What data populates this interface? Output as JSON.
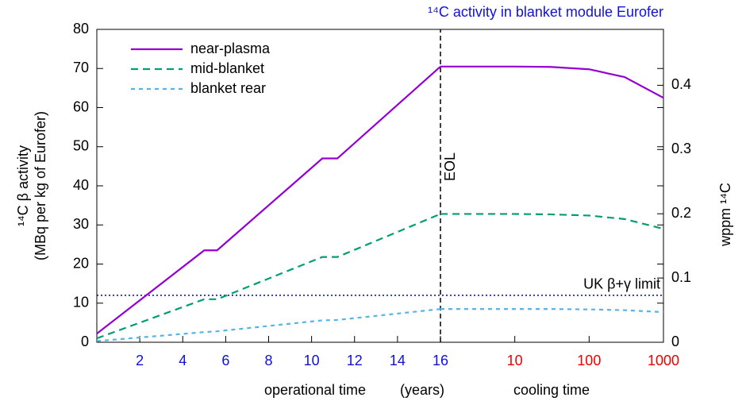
{
  "chart_data": {
    "type": "line",
    "title": "¹⁴C activity in blanket module Eurofer",
    "ylabel": [
      "¹⁴C β activity",
      "(MBq per kg of Eurofer)"
    ],
    "y2label": "wppm ¹⁴C",
    "xlabels": [
      "operational time",
      "(years)",
      "cooling time"
    ],
    "x": [
      0,
      5,
      5.6,
      10.5,
      11.2,
      16
    ],
    "xlim": [
      0,
      16
    ],
    "xticks": [
      2,
      4,
      6,
      8,
      10,
      12,
      14,
      16
    ],
    "xtick_color": "#1010e0",
    "cooling_x": [
      1,
      10,
      30,
      100,
      300,
      1000
    ],
    "cooling_xlim": [
      1,
      1000
    ],
    "cooling_log": true,
    "cooling_xticks": [
      10,
      100,
      1000
    ],
    "cooling_xtick_color": "#f00000",
    "ylim": [
      0,
      80
    ],
    "yticks": [
      0,
      10,
      20,
      30,
      40,
      50,
      60,
      70,
      80
    ],
    "y2lim": [
      0,
      0.487
    ],
    "y2ticks": [
      0,
      0.1,
      0.2,
      0.3,
      0.4
    ],
    "legend": "upper left",
    "series": [
      {
        "name": "near-plasma",
        "color": "#9400d3",
        "dash": "solid",
        "values": [
          2.2,
          23.5,
          23.5,
          47,
          47,
          70.5
        ],
        "cooling_values": [
          70.5,
          70.5,
          70.4,
          69.8,
          67.8,
          62.5
        ]
      },
      {
        "name": "mid-blanket",
        "color": "#009e73",
        "dash": "dashed",
        "values": [
          1,
          11,
          11,
          21.8,
          21.8,
          32.8
        ],
        "cooling_values": [
          32.8,
          32.8,
          32.7,
          32.4,
          31.5,
          29
        ]
      },
      {
        "name": "blanket rear",
        "color": "#56b4e9",
        "dash": "dotted",
        "values": [
          0.3,
          2.6,
          2.8,
          5.6,
          5.7,
          8.5
        ],
        "cooling_values": [
          8.5,
          8.5,
          8.5,
          8.4,
          8.2,
          7.7
        ]
      }
    ],
    "eol": {
      "x": 16,
      "label": "EOL"
    },
    "limit": {
      "value": 12,
      "label": "UK β+γ limit",
      "color": "#0000b0"
    }
  }
}
